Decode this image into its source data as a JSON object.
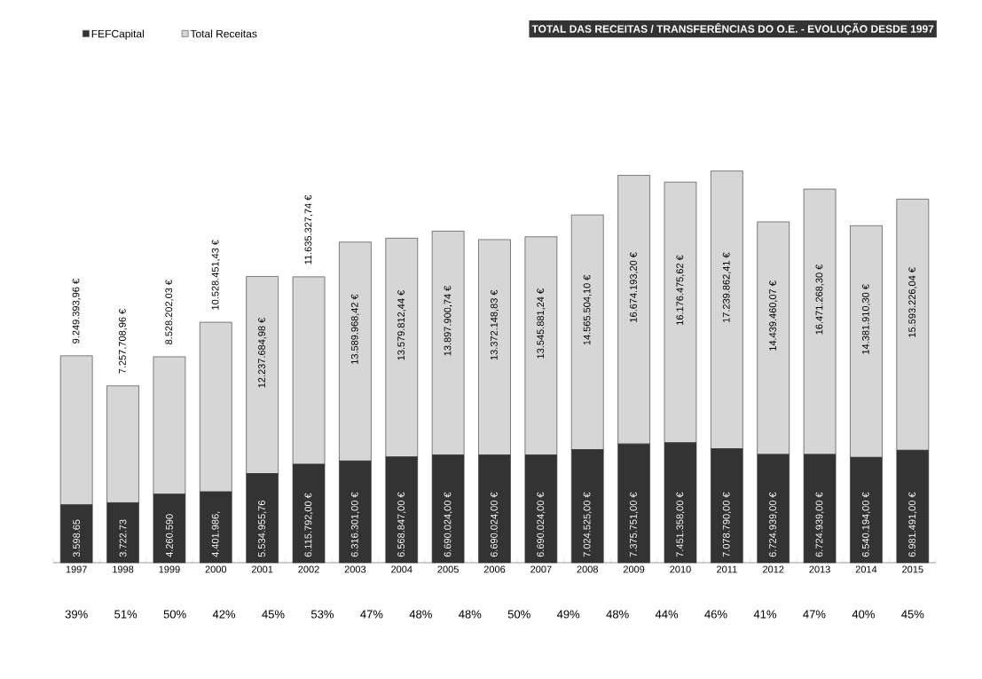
{
  "chart_data": {
    "type": "bar",
    "stacked": true,
    "title": "TOTAL DAS RECEITAS / TRANSFERÊNCIAS DO O.E. - EVOLUÇÃO DESDE 1997",
    "categories": [
      "1997",
      "1998",
      "1999",
      "2000",
      "2001",
      "2002",
      "2003",
      "2004",
      "2005",
      "2006",
      "2007",
      "2008",
      "2009",
      "2010",
      "2011",
      "2012",
      "2013",
      "2014",
      "2015"
    ],
    "series": [
      {
        "name": "FEFCapital",
        "color": "#333333",
        "values": [
          3598650,
          3722730,
          4260590,
          4401986,
          5534955.76,
          6115792,
          6316301,
          6568847,
          6690024,
          6690024,
          6690024,
          7024525,
          7375751,
          7451358,
          7078790,
          6724939,
          6724939,
          6540194,
          6981491
        ],
        "value_labels": [
          "3.598.65",
          "3.722.73",
          "4.260.590",
          "4.401.986,",
          "5.534.955,76",
          "6.115.792,00 €",
          "6.316.301,00 €",
          "6.568.847,00 €",
          "6.690.024,00 €",
          "6.690.024,00 €",
          "6.690.024,00 €",
          "7.024.525,00 €",
          "7.375.751,00 €",
          "7.451.358,00 €",
          "7.078.790,00 €",
          "6.724.939,00 €",
          "6.724.939,00 €",
          "6.540.194,00 €",
          "6.981.491,00 €"
        ]
      },
      {
        "name": "Total Receitas",
        "color": "#d6d6d6",
        "values": [
          9249393.96,
          7257708.96,
          8528202.03,
          10528451.43,
          12237684.98,
          11635327.74,
          13589968.42,
          13579812.44,
          13897900.74,
          13372148.83,
          13545881.24,
          14565504.1,
          16674193.2,
          16176475.62,
          17239862.41,
          14439460.07,
          16471268.3,
          14381910.3,
          15593226.04
        ],
        "value_labels": [
          "9.249.393,96 €",
          "7.257.708,96 €",
          "8.528.202,03 €",
          "10.528.451,43 €",
          "12.237.684,98 €",
          "11.635.327,74 €",
          "13.589.968,42 €",
          "13.579.812,44 €",
          "13.897.900,74 €",
          "13.372.148,83 €",
          "13.545.881,24 €",
          "14.565.504,10 €",
          "16.674.193,20 €",
          "16.176.475,62 €",
          "17.239.862,41 €",
          "14.439.460,07 €",
          "16.471.268,30 €",
          "14.381.910,30 €",
          "15.593.226,04 €"
        ]
      }
    ],
    "annotations": [
      "39%",
      "51%",
      "50%",
      "42%",
      "45%",
      "53%",
      "47%",
      "48%",
      "48%",
      "50%",
      "49%",
      "48%",
      "44%",
      "46%",
      "41%",
      "47%",
      "40%",
      "45%"
    ],
    "legend": "top left",
    "tick_labels": "x",
    "grid": false
  }
}
